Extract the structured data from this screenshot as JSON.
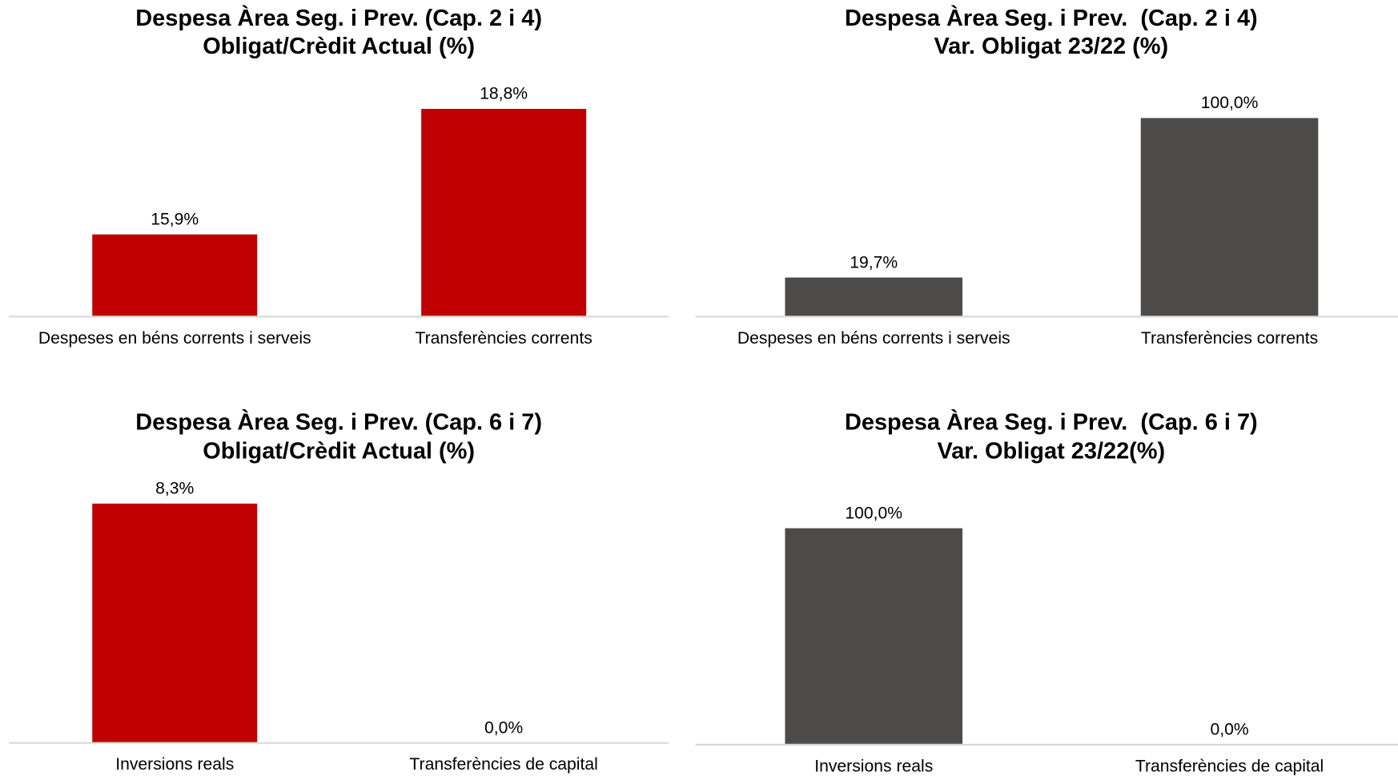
{
  "chart_data": [
    {
      "type": "bar",
      "title": "Despesa Àrea Seg. i Prev. (Cap. 2 i 4)",
      "subtitle": "Obligat/Crèdit Actual (%)",
      "categories": [
        "Despeses en béns corrents i serveis",
        "Transferències corrents"
      ],
      "values": [
        15.9,
        18.8
      ],
      "value_labels": [
        "15,9%",
        "18,8%"
      ],
      "color": "#c00000",
      "ylim": [
        14,
        19.5
      ]
    },
    {
      "type": "bar",
      "title": "Despesa Àrea Seg. i Prev.  (Cap. 2 i 4)",
      "subtitle": "Var. Obligat 23/22 (%)",
      "categories": [
        "Despeses en béns corrents i serveis",
        "Transferències corrents"
      ],
      "values": [
        19.7,
        100.0
      ],
      "value_labels": [
        "19,7%",
        "100,0%"
      ],
      "color": "#4d4a4a",
      "ylim": [
        0,
        110
      ]
    },
    {
      "type": "bar",
      "title": "Despesa Àrea Seg. i Prev. (Cap. 6 i 7)",
      "subtitle": "Obligat/Crèdit Actual (%)",
      "categories": [
        "Inversions reals",
        "Transferències de capital"
      ],
      "values": [
        8.3,
        0.0
      ],
      "value_labels": [
        "8,3%",
        "0,0%"
      ],
      "color": "#c00000",
      "ylim": [
        0,
        9
      ]
    },
    {
      "type": "bar",
      "title": "Despesa Àrea Seg. i Prev.  (Cap. 6 i 7)",
      "subtitle": "Var. Obligat 23/22(%)",
      "categories": [
        "Inversions reals",
        "Transferències de capital"
      ],
      "values": [
        100.0,
        0.0
      ],
      "value_labels": [
        "100,0%",
        "0,0%"
      ],
      "color": "#4d4a4a",
      "ylim": [
        0,
        110
      ]
    }
  ]
}
